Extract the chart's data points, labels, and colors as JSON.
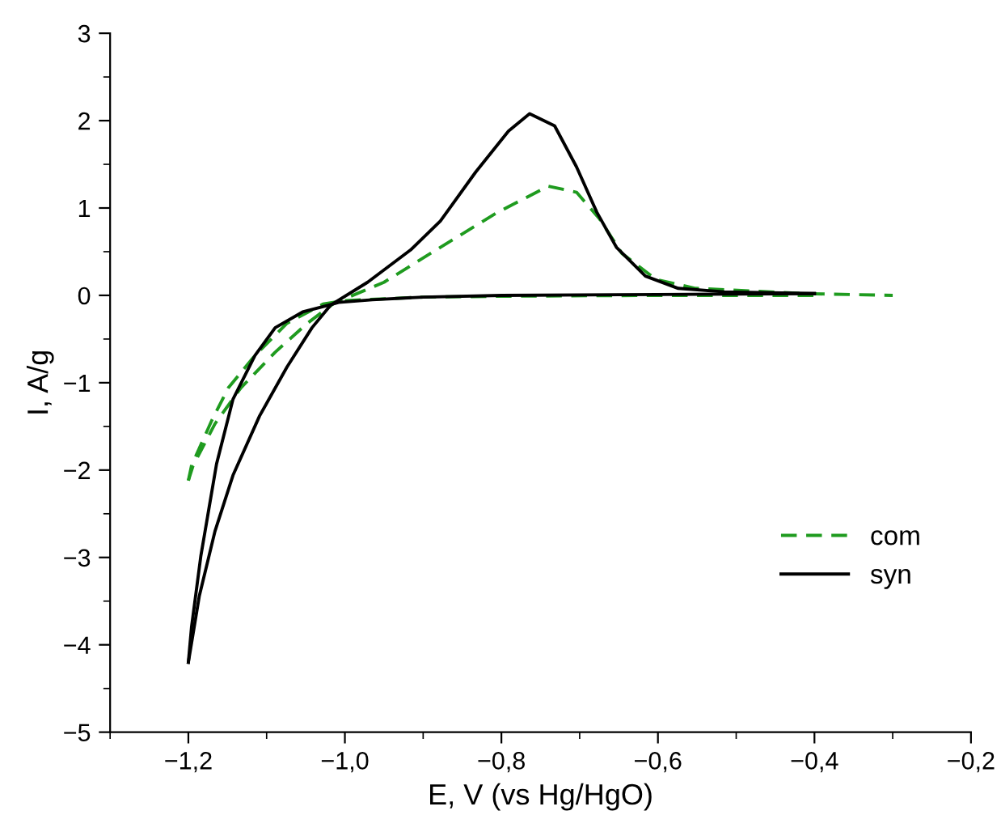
{
  "chart_data": {
    "type": "line",
    "xlabel": "E, V (vs Hg/HgO)",
    "ylabel": "I, A/g",
    "xlim": [
      -1.3,
      -0.2
    ],
    "ylim": [
      -5,
      3
    ],
    "xticks": [
      {
        "value": -1.2,
        "label": "−1,2"
      },
      {
        "value": -1.0,
        "label": "−1,0"
      },
      {
        "value": -0.8,
        "label": "−0,8"
      },
      {
        "value": -0.6,
        "label": "−0,6"
      },
      {
        "value": -0.4,
        "label": "−0,4"
      },
      {
        "value": -0.2,
        "label": "−0,2"
      }
    ],
    "yticks": [
      {
        "value": -5,
        "label": "−5"
      },
      {
        "value": -4,
        "label": "−4"
      },
      {
        "value": -3,
        "label": "−3"
      },
      {
        "value": -2,
        "label": "−2"
      },
      {
        "value": -1,
        "label": "−1"
      },
      0,
      1,
      2,
      3
    ],
    "grid": false,
    "legend": "bottom right",
    "marker": "none",
    "series": [
      {
        "name": "com",
        "color": "#1f9b1f",
        "line_style": "dashed",
        "x": [
          -1.2,
          -1.194,
          -1.166,
          -1.133,
          -1.089,
          -1.048,
          -1.014,
          -0.95,
          -0.878,
          -0.805,
          -0.74,
          -0.704,
          -0.675,
          -0.646,
          -0.602,
          -0.552,
          -0.41,
          -0.3
        ],
        "values": [
          -2.12,
          -1.95,
          -1.47,
          -1.06,
          -0.65,
          -0.32,
          -0.09,
          0.15,
          0.55,
          0.95,
          1.25,
          1.18,
          0.88,
          0.48,
          0.18,
          0.08,
          0.02,
          0.0
        ]
      },
      {
        "color": "#1f9b1f",
        "line_style": "dashed",
        "x": [
          -1.2,
          -1.196,
          -1.186,
          -1.17,
          -1.149,
          -1.115,
          -1.074,
          -1.028,
          -1.0,
          -0.9,
          -0.8,
          -0.6,
          -0.4
        ],
        "values": [
          -2.12,
          -1.95,
          -1.75,
          -1.43,
          -1.06,
          -0.69,
          -0.32,
          -0.1,
          -0.06,
          -0.02,
          -0.01,
          0.0,
          0.0
        ]
      },
      {
        "name": "syn",
        "color": "#000000",
        "line_style": "solid",
        "x": [
          -1.2,
          -1.186,
          -1.166,
          -1.143,
          -1.109,
          -1.074,
          -1.042,
          -1.018,
          -0.971,
          -0.916,
          -0.878,
          -0.833,
          -0.791,
          -0.764,
          -0.732,
          -0.704,
          -0.678,
          -0.653,
          -0.616,
          -0.574,
          -0.515,
          -0.4
        ],
        "values": [
          -4.2,
          -3.44,
          -2.7,
          -2.06,
          -1.38,
          -0.82,
          -0.37,
          -0.11,
          0.15,
          0.52,
          0.85,
          1.41,
          1.88,
          2.08,
          1.94,
          1.47,
          0.95,
          0.55,
          0.22,
          0.08,
          0.04,
          0.02
        ]
      },
      {
        "color": "#000000",
        "line_style": "solid",
        "x": [
          -1.2,
          -1.196,
          -1.184,
          -1.164,
          -1.143,
          -1.115,
          -1.089,
          -1.054,
          -1.02,
          -1.008,
          -0.965,
          -0.9,
          -0.8,
          -0.6,
          -0.4
        ],
        "values": [
          -4.2,
          -3.8,
          -2.98,
          -1.93,
          -1.19,
          -0.69,
          -0.37,
          -0.19,
          -0.11,
          -0.08,
          -0.05,
          -0.02,
          0.0,
          0.01,
          0.02
        ]
      }
    ]
  }
}
